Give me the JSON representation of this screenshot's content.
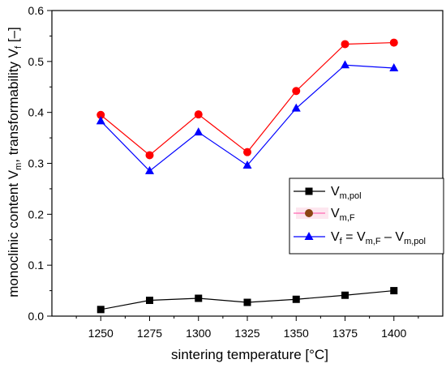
{
  "chart_data": {
    "type": "line",
    "x": [
      1250,
      1275,
      1300,
      1325,
      1350,
      1375,
      1400
    ],
    "xlim": [
      1225,
      1425
    ],
    "ylim": [
      0.0,
      0.6
    ],
    "xticks": [
      1250,
      1275,
      1300,
      1325,
      1350,
      1375,
      1400
    ],
    "yticks": [
      0.0,
      0.1,
      0.2,
      0.3,
      0.4,
      0.5,
      0.6
    ],
    "xtick_labels": [
      "1250",
      "1275",
      "1300",
      "1325",
      "1350",
      "1375",
      "1400"
    ],
    "ytick_labels": [
      "0.0",
      "0.1",
      "0.2",
      "0.3",
      "0.4",
      "0.5",
      "0.6"
    ],
    "xlabel": "sintering temperature [°C]",
    "ylabel": {
      "part1": "monoclinic content V",
      "part1_sub": "m",
      "part2": ", transformability V",
      "part2_sub": "f",
      "part3": " [–]"
    },
    "grid": false,
    "legend_position": "center-right",
    "series": [
      {
        "key": "vm_pol",
        "marker": "square",
        "line_color": "#000000",
        "marker_fill": "#000000",
        "values": [
          0.013,
          0.031,
          0.035,
          0.027,
          0.033,
          0.041,
          0.05
        ]
      },
      {
        "key": "vm_f",
        "marker": "circle",
        "line_color": "#ff0000",
        "marker_fill": "#ff0000",
        "values": [
          0.395,
          0.316,
          0.396,
          0.322,
          0.442,
          0.534,
          0.537
        ]
      },
      {
        "key": "vf",
        "marker": "triangle",
        "line_color": "#0000ff",
        "marker_fill": "#0000ff",
        "values": [
          0.383,
          0.285,
          0.361,
          0.296,
          0.408,
          0.493,
          0.487
        ]
      }
    ],
    "legend": [
      {
        "main": "V",
        "sub": "m,pol"
      },
      {
        "main": "V",
        "sub": "m,F"
      },
      {
        "main": "V",
        "sub": "f",
        "mid": " = V",
        "sub2": "m,F",
        "mid2": " – V",
        "sub3": "m,pol"
      }
    ],
    "legend_marker_colors": {
      "vm_pol": "#000000",
      "vm_f_fill": "#8b4513",
      "vm_f_line": "#ff69b4",
      "vf": "#0000ff"
    }
  }
}
